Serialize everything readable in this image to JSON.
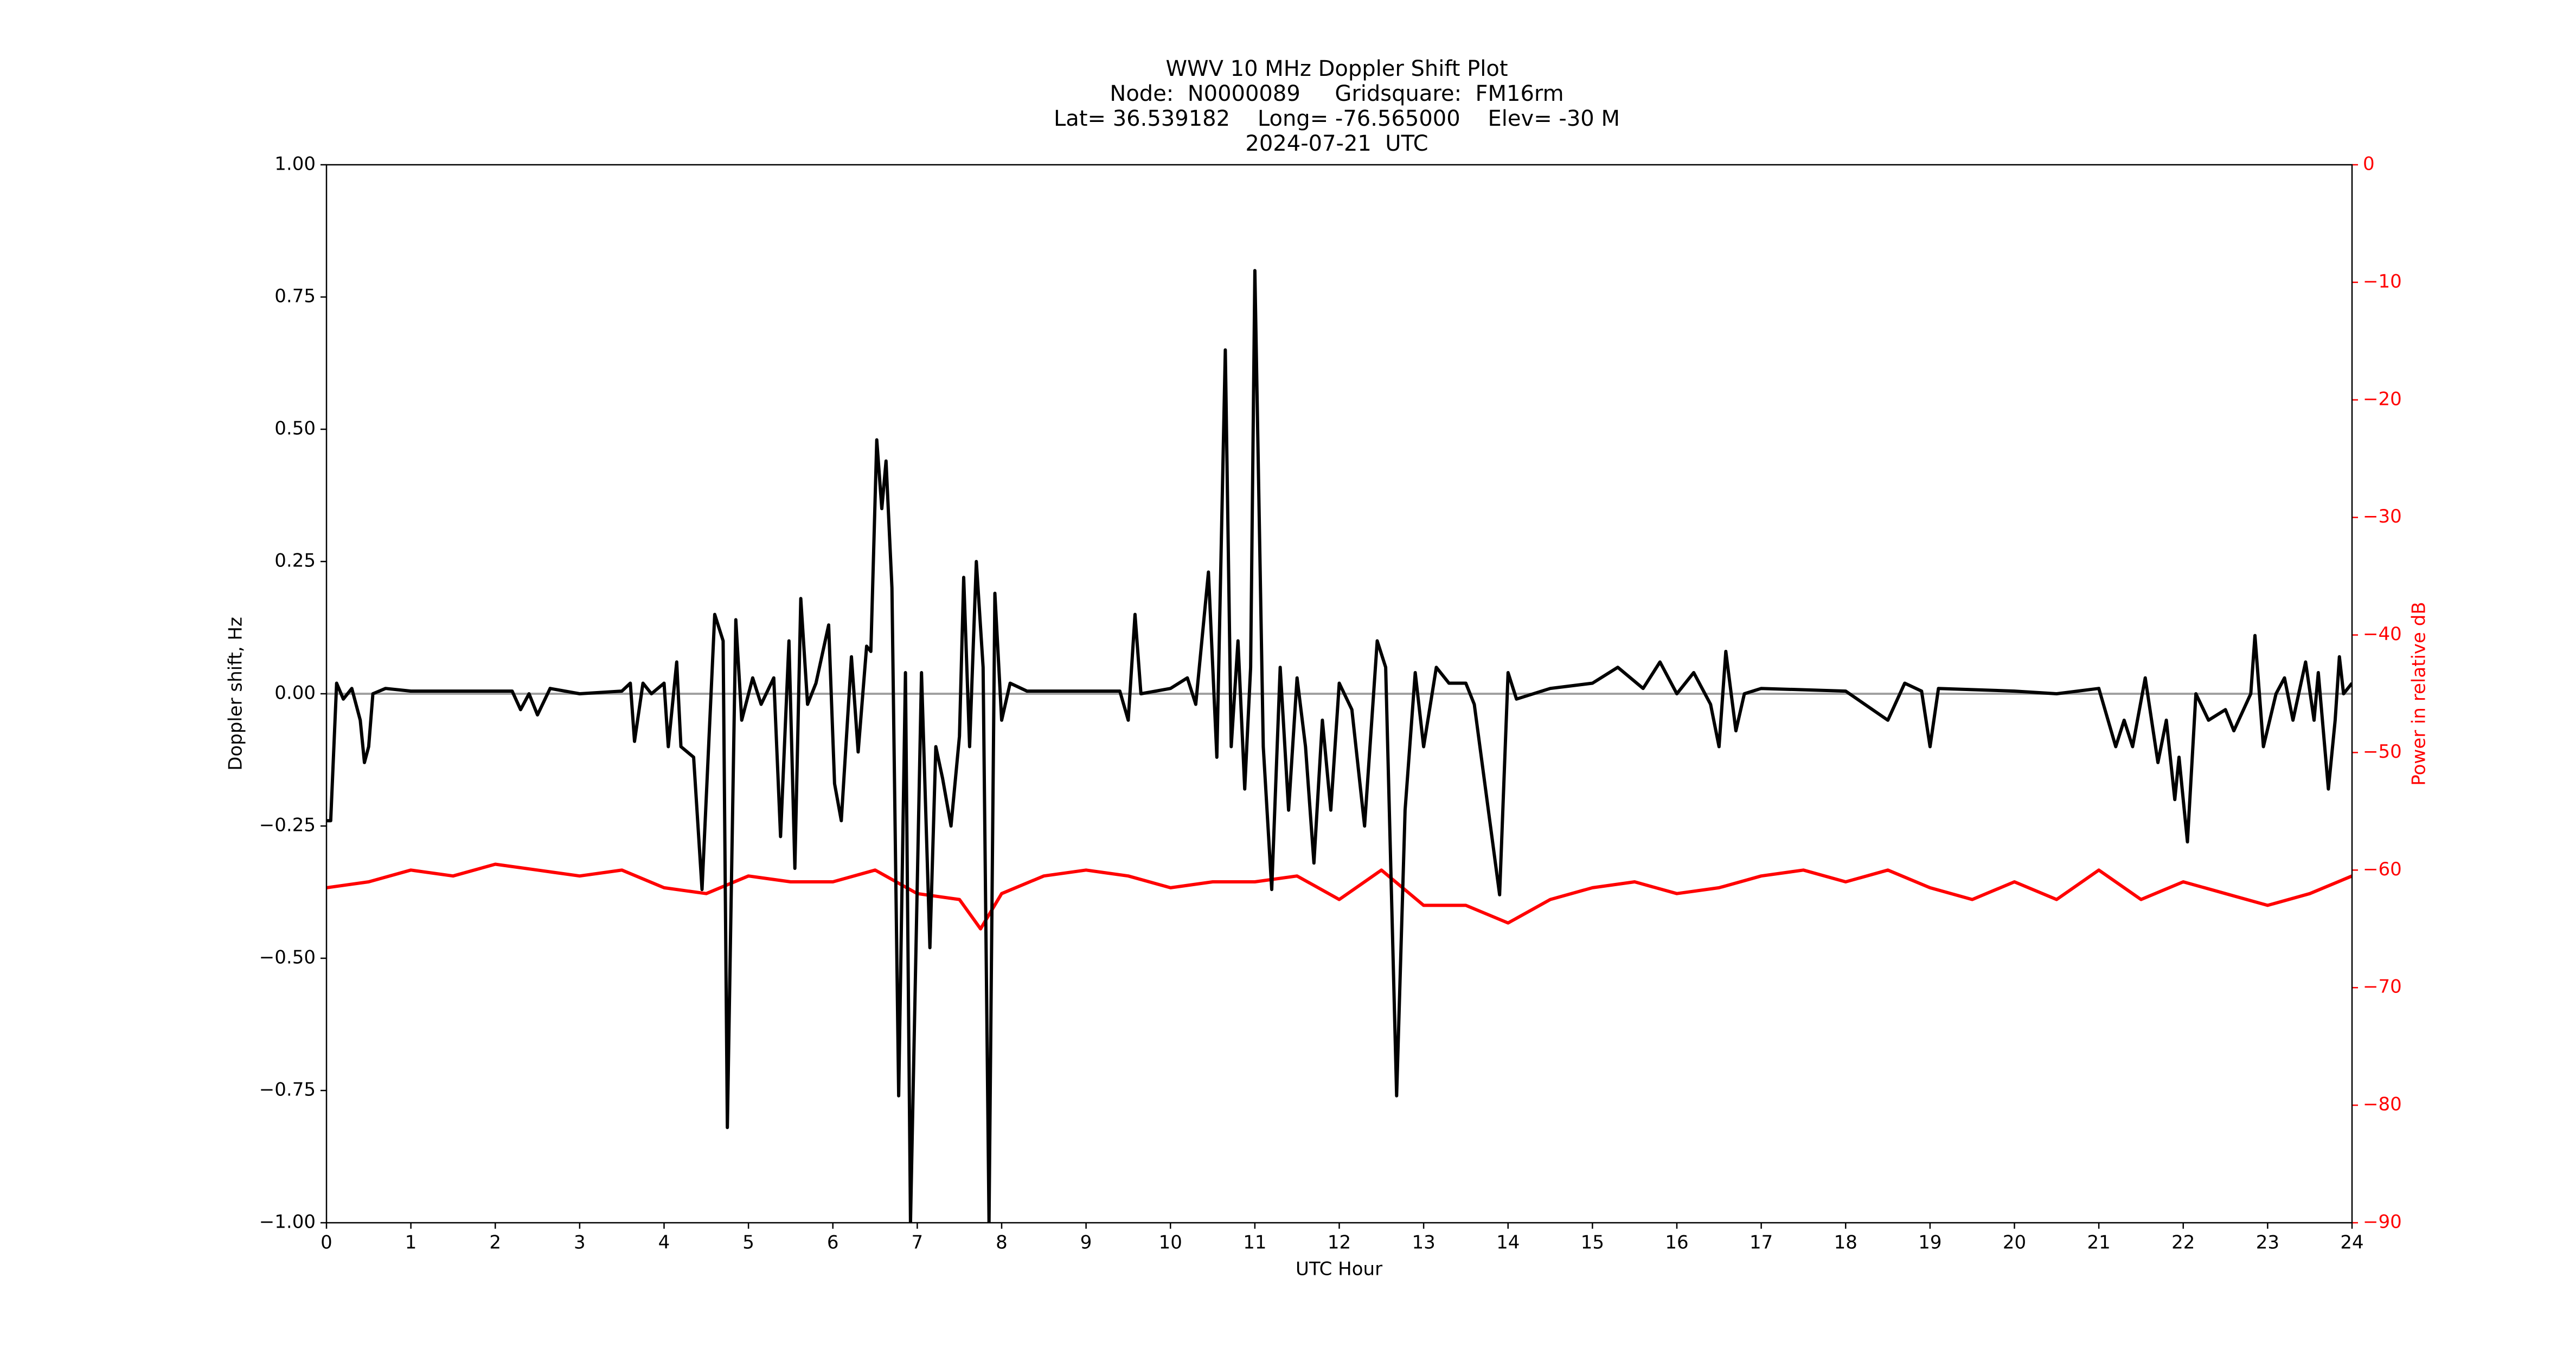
{
  "chart_data": {
    "type": "line",
    "title": [
      "WWV 10 MHz Doppler Shift Plot",
      "Node:  N0000089     Gridsquare:  FM16rm",
      "Lat= 36.539182    Long= -76.565000    Elev= -30 M",
      "2024-07-21  UTC"
    ],
    "xlabel": "UTC Hour",
    "ylabel": "Doppler shift, Hz",
    "y2label": "Power in relative dB",
    "xlim": [
      0,
      24
    ],
    "xticks": [
      0,
      1,
      2,
      3,
      4,
      5,
      6,
      7,
      8,
      9,
      10,
      11,
      12,
      13,
      14,
      15,
      16,
      17,
      18,
      19,
      20,
      21,
      22,
      23,
      24
    ],
    "ylim": [
      -1,
      1
    ],
    "yticks": [
      {
        "value": -1,
        "label": "−1.00"
      },
      {
        "value": -0.75,
        "label": "−0.75"
      },
      {
        "value": -0.5,
        "label": "−0.50"
      },
      {
        "value": -0.25,
        "label": "−0.25"
      },
      {
        "value": 0,
        "label": "0.00"
      },
      {
        "value": 0.25,
        "label": "0.25"
      },
      {
        "value": 0.5,
        "label": "0.50"
      },
      {
        "value": 0.75,
        "label": "0.75"
      },
      {
        "value": 1,
        "label": "1.00"
      }
    ],
    "y2lim": [
      -90,
      0
    ],
    "y2ticks": [
      {
        "value": -90,
        "label": "−90"
      },
      {
        "value": -80,
        "label": "−80"
      },
      {
        "value": -70,
        "label": "−70"
      },
      {
        "value": -60,
        "label": "−60"
      },
      {
        "value": -50,
        "label": "−50"
      },
      {
        "value": -40,
        "label": "−40"
      },
      {
        "value": -30,
        "label": "−30"
      },
      {
        "value": -20,
        "label": "−20"
      },
      {
        "value": -10,
        "label": "−10"
      },
      0
    ],
    "y2color": "#ff0000",
    "reference_line": {
      "value": 0,
      "color": "#a0a0a0"
    },
    "series": [
      {
        "color": "#000000",
        "x": [
          0,
          0.05,
          0.12,
          0.2,
          0.3,
          0.4,
          0.45,
          0.5,
          0.55,
          0.7,
          1,
          2,
          2.2,
          2.3,
          2.4,
          2.5,
          2.65,
          3,
          3.5,
          3.6,
          3.65,
          3.75,
          3.85,
          4,
          4.05,
          4.15,
          4.2,
          4.35,
          4.45,
          4.6,
          4.7,
          4.75,
          4.85,
          4.92,
          5.05,
          5.15,
          5.3,
          5.38,
          5.48,
          5.55,
          5.62,
          5.7,
          5.8,
          5.95,
          6.02,
          6.1,
          6.22,
          6.3,
          6.4,
          6.45,
          6.52,
          6.58,
          6.63,
          6.7,
          6.78,
          6.86,
          6.92,
          7.05,
          7.15,
          7.22,
          7.3,
          7.4,
          7.5,
          7.55,
          7.62,
          7.7,
          7.78,
          7.85,
          7.92,
          8,
          8.1,
          8.3,
          9,
          9.4,
          9.5,
          9.58,
          9.65,
          10,
          10.2,
          10.3,
          10.45,
          10.55,
          10.65,
          10.72,
          10.8,
          10.88,
          10.95,
          11,
          11.1,
          11.2,
          11.3,
          11.4,
          11.5,
          11.6,
          11.7,
          11.8,
          11.9,
          12,
          12.15,
          12.3,
          12.45,
          12.55,
          12.68,
          12.78,
          12.9,
          13,
          13.15,
          13.3,
          13.5,
          13.6,
          13.9,
          14,
          14.1,
          14.5,
          15,
          15.3,
          15.6,
          15.8,
          16,
          16.2,
          16.4,
          16.5,
          16.58,
          16.7,
          16.8,
          17,
          18,
          18.5,
          18.7,
          18.9,
          19,
          19.1,
          20,
          20.5,
          21,
          21.2,
          21.3,
          21.4,
          21.55,
          21.7,
          21.8,
          21.9,
          21.95,
          22.05,
          22.15,
          22.3,
          22.5,
          22.6,
          22.8,
          22.85,
          22.95,
          23.1,
          23.2,
          23.3,
          23.45,
          23.55,
          23.6,
          23.72,
          23.8,
          23.85,
          23.9,
          24
        ],
        "values": [
          -0.24,
          -0.24,
          0.02,
          -0.01,
          0.01,
          -0.05,
          -0.13,
          -0.1,
          0,
          0.01,
          0.005,
          0.005,
          0.005,
          -0.03,
          0,
          -0.04,
          0.01,
          0,
          0.005,
          0.02,
          -0.09,
          0.02,
          0,
          0.02,
          -0.1,
          0.06,
          -0.1,
          -0.12,
          -0.37,
          0.15,
          0.1,
          -0.82,
          0.14,
          -0.05,
          0.03,
          -0.02,
          0.03,
          -0.27,
          0.1,
          -0.33,
          0.18,
          -0.02,
          0.02,
          0.13,
          -0.17,
          -0.24,
          0.07,
          -0.11,
          0.09,
          0.08,
          0.48,
          0.35,
          0.44,
          0.2,
          -0.76,
          0.04,
          -1,
          0.04,
          -0.48,
          -0.1,
          -0.16,
          -0.25,
          -0.08,
          0.22,
          -0.1,
          0.25,
          0.05,
          -1,
          0.19,
          -0.05,
          0.02,
          0.005,
          0.005,
          0.005,
          -0.05,
          0.15,
          0,
          0.01,
          0.03,
          -0.02,
          0.23,
          -0.12,
          0.65,
          -0.1,
          0.1,
          -0.18,
          0.05,
          0.8,
          -0.1,
          -0.37,
          0.05,
          -0.22,
          0.03,
          -0.1,
          -0.32,
          -0.05,
          -0.22,
          0.02,
          -0.03,
          -0.25,
          0.1,
          0.05,
          -0.76,
          -0.22,
          0.04,
          -0.1,
          0.05,
          0.02,
          0.02,
          -0.02,
          -0.38,
          0.04,
          -0.01,
          0.01,
          0.02,
          0.05,
          0.01,
          0.06,
          0,
          0.04,
          -0.02,
          -0.1,
          0.08,
          -0.07,
          0,
          0.01,
          0.005,
          -0.05,
          0.02,
          0.005,
          -0.1,
          0.01,
          0.005,
          0,
          0.01,
          -0.1,
          -0.05,
          -0.1,
          0.03,
          -0.13,
          -0.05,
          -0.2,
          -0.12,
          -0.28,
          0,
          -0.05,
          -0.03,
          -0.07,
          0,
          0.11,
          -0.1,
          0,
          0.03,
          -0.05,
          0.06,
          -0.05,
          0.04,
          -0.18,
          -0.05,
          0.07,
          0,
          0.02
        ]
      },
      {
        "color": "#ff0000",
        "axis": "y2",
        "x": [
          0,
          0.5,
          1,
          1.5,
          2,
          2.5,
          3,
          3.5,
          4,
          4.5,
          5,
          5.5,
          6,
          6.5,
          7,
          7.5,
          7.75,
          8,
          8.5,
          9,
          9.5,
          10,
          10.5,
          11,
          11.5,
          12,
          12.5,
          13,
          13.5,
          14,
          14.5,
          15,
          15.5,
          16,
          16.5,
          17,
          17.5,
          18,
          18.5,
          19,
          19.5,
          20,
          20.5,
          21,
          21.5,
          22,
          22.5,
          23,
          23.5,
          24
        ],
        "values": [
          -61.5,
          -61,
          -60,
          -60.5,
          -59.5,
          -60,
          -60.5,
          -60,
          -61.5,
          -62,
          -60.5,
          -61,
          -61,
          -60,
          -62,
          -62.5,
          -65,
          -62,
          -60.5,
          -60,
          -60.5,
          -61.5,
          -61,
          -61,
          -60.5,
          -62.5,
          -60,
          -63,
          -63,
          -64.5,
          -62.5,
          -61.5,
          -61,
          -62,
          -61.5,
          -60.5,
          -60,
          -61,
          -60,
          -61.5,
          -62.5,
          -61,
          -62.5,
          -60,
          -62.5,
          -61,
          -62,
          -63,
          -62,
          -60.5
        ]
      }
    ]
  }
}
